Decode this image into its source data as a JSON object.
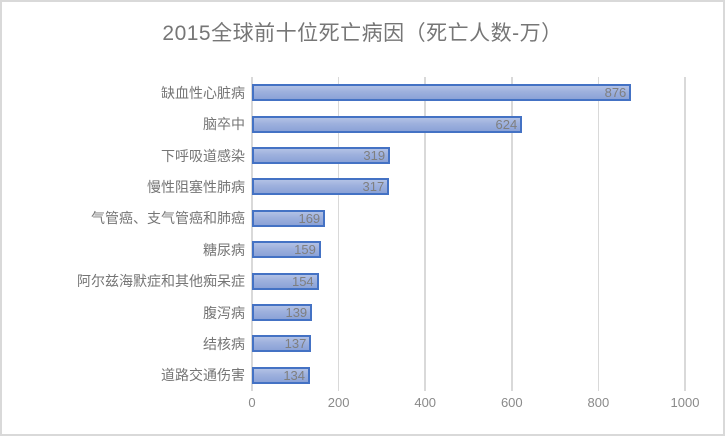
{
  "chart_data": {
    "type": "bar",
    "orientation": "horizontal",
    "title": "2015全球前十位死亡病因（死亡人数-万）",
    "categories": [
      "缺血性心脏病",
      "脑卒中",
      "下呼吸道感染",
      "慢性阻塞性肺病",
      "气管癌、支气管癌和肺癌",
      "糖尿病",
      "阿尔兹海默症和其他痴呆症",
      "腹泻病",
      "结核病",
      "道路交通伤害"
    ],
    "values": [
      876,
      624,
      319,
      317,
      169,
      159,
      154,
      139,
      137,
      134
    ],
    "xlabel": "",
    "ylabel": "",
    "xlim": [
      0,
      1000
    ],
    "x_ticks": [
      0,
      200,
      400,
      600,
      800,
      1000
    ],
    "grid": true,
    "legend": "none",
    "data_labels_position": "inside-end",
    "colors": {
      "bar_fill_top": "#b2c1e5",
      "bar_fill_bottom": "#8ba2d7",
      "bar_border": "#4472c4",
      "data_label": "#7f7f7f",
      "gridline": "#d9d9d9",
      "title": "#767676",
      "axis_label": "#8a8a8a",
      "category_label": "#757575",
      "chart_border": "#d9d9d9"
    }
  }
}
